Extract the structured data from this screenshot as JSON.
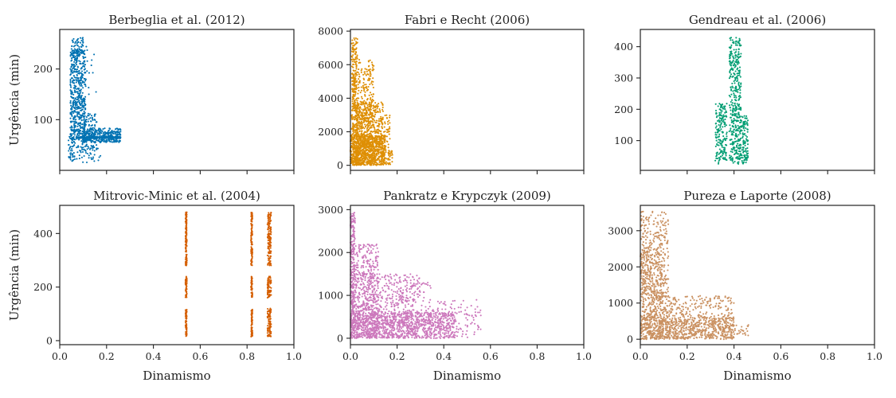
{
  "chart_data": [
    {
      "type": "scatter",
      "title": "Berbeglia et al. (2012)",
      "xlabel": "",
      "ylabel": "Urgência (min)",
      "xlim": [
        0,
        1.0
      ],
      "ylim": [
        0,
        278
      ],
      "xticks": [
        0.0,
        0.2,
        0.4,
        0.6,
        0.8,
        1.0
      ],
      "xtick_labels_visible": false,
      "yticks": [
        100,
        200
      ],
      "color": "#0072b2",
      "clusters": [
        {
          "x": [
            0.035,
            0.065
          ],
          "y": [
            18,
            86
          ],
          "n": 60
        },
        {
          "x": [
            0.045,
            0.11
          ],
          "y": [
            60,
            238
          ],
          "n": 520
        },
        {
          "x": [
            0.05,
            0.1
          ],
          "y": [
            225,
            262
          ],
          "n": 60
        },
        {
          "x": [
            0.09,
            0.16
          ],
          "y": [
            40,
            112
          ],
          "n": 90
        },
        {
          "x": [
            0.1,
            0.26
          ],
          "y": [
            55,
            83
          ],
          "n": 320
        },
        {
          "x": [
            0.07,
            0.26
          ],
          "y": [
            63,
            67
          ],
          "n": 140
        },
        {
          "x": [
            0.07,
            0.18
          ],
          "y": [
            15,
            50
          ],
          "n": 45
        },
        {
          "x": [
            0.11,
            0.16
          ],
          "y": [
            150,
            250
          ],
          "n": 14
        }
      ]
    },
    {
      "type": "scatter",
      "title": "Fabri e Recht (2006)",
      "xlabel": "",
      "ylabel": "",
      "xlim": [
        0,
        1.0
      ],
      "ylim": [
        -300,
        8100
      ],
      "xticks": [
        0.0,
        0.2,
        0.4,
        0.6,
        0.8,
        1.0
      ],
      "xtick_labels_visible": false,
      "yticks": [
        0,
        2000,
        4000,
        6000,
        8000
      ],
      "color": "#de8f05",
      "clusters": [
        {
          "x": [
            0.005,
            0.03
          ],
          "y": [
            0,
            7600
          ],
          "n": 260
        },
        {
          "x": [
            0.01,
            0.1
          ],
          "y": [
            0,
            6300
          ],
          "n": 420
        },
        {
          "x": [
            0.02,
            0.14
          ],
          "y": [
            0,
            3800
          ],
          "n": 480
        },
        {
          "x": [
            0.0,
            0.15
          ],
          "y": [
            0,
            1800
          ],
          "n": 600
        },
        {
          "x": [
            0.13,
            0.17
          ],
          "y": [
            0,
            3000
          ],
          "n": 70
        },
        {
          "x": [
            0.16,
            0.18
          ],
          "y": [
            0,
            900
          ],
          "n": 25
        }
      ]
    },
    {
      "type": "scatter",
      "title": "Gendreau et al. (2006)",
      "xlabel": "",
      "ylabel": "",
      "xlim": [
        0,
        1.0
      ],
      "ylim": [
        5,
        455
      ],
      "xticks": [
        0.0,
        0.2,
        0.4,
        0.6,
        0.8,
        1.0
      ],
      "xtick_labels_visible": false,
      "yticks": [
        100,
        200,
        300,
        400
      ],
      "color": "#029e73",
      "clusters": [
        {
          "x": [
            0.32,
            0.37
          ],
          "y": [
            25,
            220
          ],
          "n": 180
        },
        {
          "x": [
            0.38,
            0.43
          ],
          "y": [
            25,
            430
          ],
          "n": 420
        },
        {
          "x": [
            0.43,
            0.46
          ],
          "y": [
            25,
            180
          ],
          "n": 110
        }
      ]
    },
    {
      "type": "scatter",
      "title": "Mitrovic-Minic et al. (2004)",
      "xlabel": "Dinamismo",
      "ylabel": "Urgência (min)",
      "xlim": [
        0,
        1.0
      ],
      "ylim": [
        -15,
        505
      ],
      "xticks": [
        0.0,
        0.2,
        0.4,
        0.6,
        0.8,
        1.0
      ],
      "xtick_labels": [
        "0.0",
        "0.2",
        "0.4",
        "0.6",
        "0.8",
        "1.0"
      ],
      "yticks": [
        0,
        200,
        400
      ],
      "color": "#d55e00",
      "clusters": [
        {
          "x": [
            0.537,
            0.543
          ],
          "y": [
            15,
            120
          ],
          "n": 70
        },
        {
          "x": [
            0.537,
            0.543
          ],
          "y": [
            160,
            240
          ],
          "n": 50
        },
        {
          "x": [
            0.537,
            0.543
          ],
          "y": [
            280,
            480
          ],
          "n": 120
        },
        {
          "x": [
            0.817,
            0.823
          ],
          "y": [
            15,
            120
          ],
          "n": 70
        },
        {
          "x": [
            0.817,
            0.823
          ],
          "y": [
            160,
            240
          ],
          "n": 50
        },
        {
          "x": [
            0.817,
            0.823
          ],
          "y": [
            280,
            480
          ],
          "n": 120
        },
        {
          "x": [
            0.887,
            0.903
          ],
          "y": [
            15,
            120
          ],
          "n": 90
        },
        {
          "x": [
            0.887,
            0.903
          ],
          "y": [
            160,
            240
          ],
          "n": 70
        },
        {
          "x": [
            0.887,
            0.903
          ],
          "y": [
            280,
            478
          ],
          "n": 140
        }
      ]
    },
    {
      "type": "scatter",
      "title": "Pankratz e Krypczyk (2009)",
      "xlabel": "Dinamismo",
      "ylabel": "",
      "xlim": [
        0,
        1.0
      ],
      "ylim": [
        -150,
        3100
      ],
      "xticks": [
        0.0,
        0.2,
        0.4,
        0.6,
        0.8,
        1.0
      ],
      "xtick_labels": [
        "0.0",
        "0.2",
        "0.4",
        "0.6",
        "0.8",
        "1.0"
      ],
      "yticks": [
        0,
        1000,
        2000,
        3000
      ],
      "color": "#cc78bc",
      "clusters": [
        {
          "x": [
            0.0,
            0.02
          ],
          "y": [
            0,
            2950
          ],
          "n": 200
        },
        {
          "x": [
            0.0,
            0.12
          ],
          "y": [
            0,
            2200
          ],
          "n": 520
        },
        {
          "x": [
            0.05,
            0.3
          ],
          "y": [
            0,
            1500
          ],
          "n": 460
        },
        {
          "x": [
            0.0,
            0.45
          ],
          "y": [
            0,
            600
          ],
          "n": 900
        },
        {
          "x": [
            0.3,
            0.56
          ],
          "y": [
            0,
            900
          ],
          "n": 160
        },
        {
          "x": [
            0.2,
            0.36
          ],
          "y": [
            300,
            1300
          ],
          "n": 60
        }
      ]
    },
    {
      "type": "scatter",
      "title": "Pureza e Laporte (2008)",
      "xlabel": "Dinamismo",
      "ylabel": "",
      "xlim": [
        0,
        1.0
      ],
      "ylim": [
        -150,
        3700
      ],
      "xticks": [
        0.0,
        0.2,
        0.4,
        0.6,
        0.8,
        1.0
      ],
      "xtick_labels": [
        "0.0",
        "0.2",
        "0.4",
        "0.6",
        "0.8",
        "1.0"
      ],
      "yticks": [
        0,
        1000,
        2000,
        3000
      ],
      "color": "#ca9161",
      "clusters": [
        {
          "x": [
            0.0,
            0.12
          ],
          "y": [
            0,
            3550
          ],
          "n": 520
        },
        {
          "x": [
            0.0,
            0.1
          ],
          "y": [
            0,
            2500
          ],
          "n": 300
        },
        {
          "x": [
            0.08,
            0.4
          ],
          "y": [
            0,
            1200
          ],
          "n": 420
        },
        {
          "x": [
            0.0,
            0.4
          ],
          "y": [
            0,
            600
          ],
          "n": 500
        },
        {
          "x": [
            0.38,
            0.47
          ],
          "y": [
            100,
            400
          ],
          "n": 30
        }
      ]
    }
  ]
}
